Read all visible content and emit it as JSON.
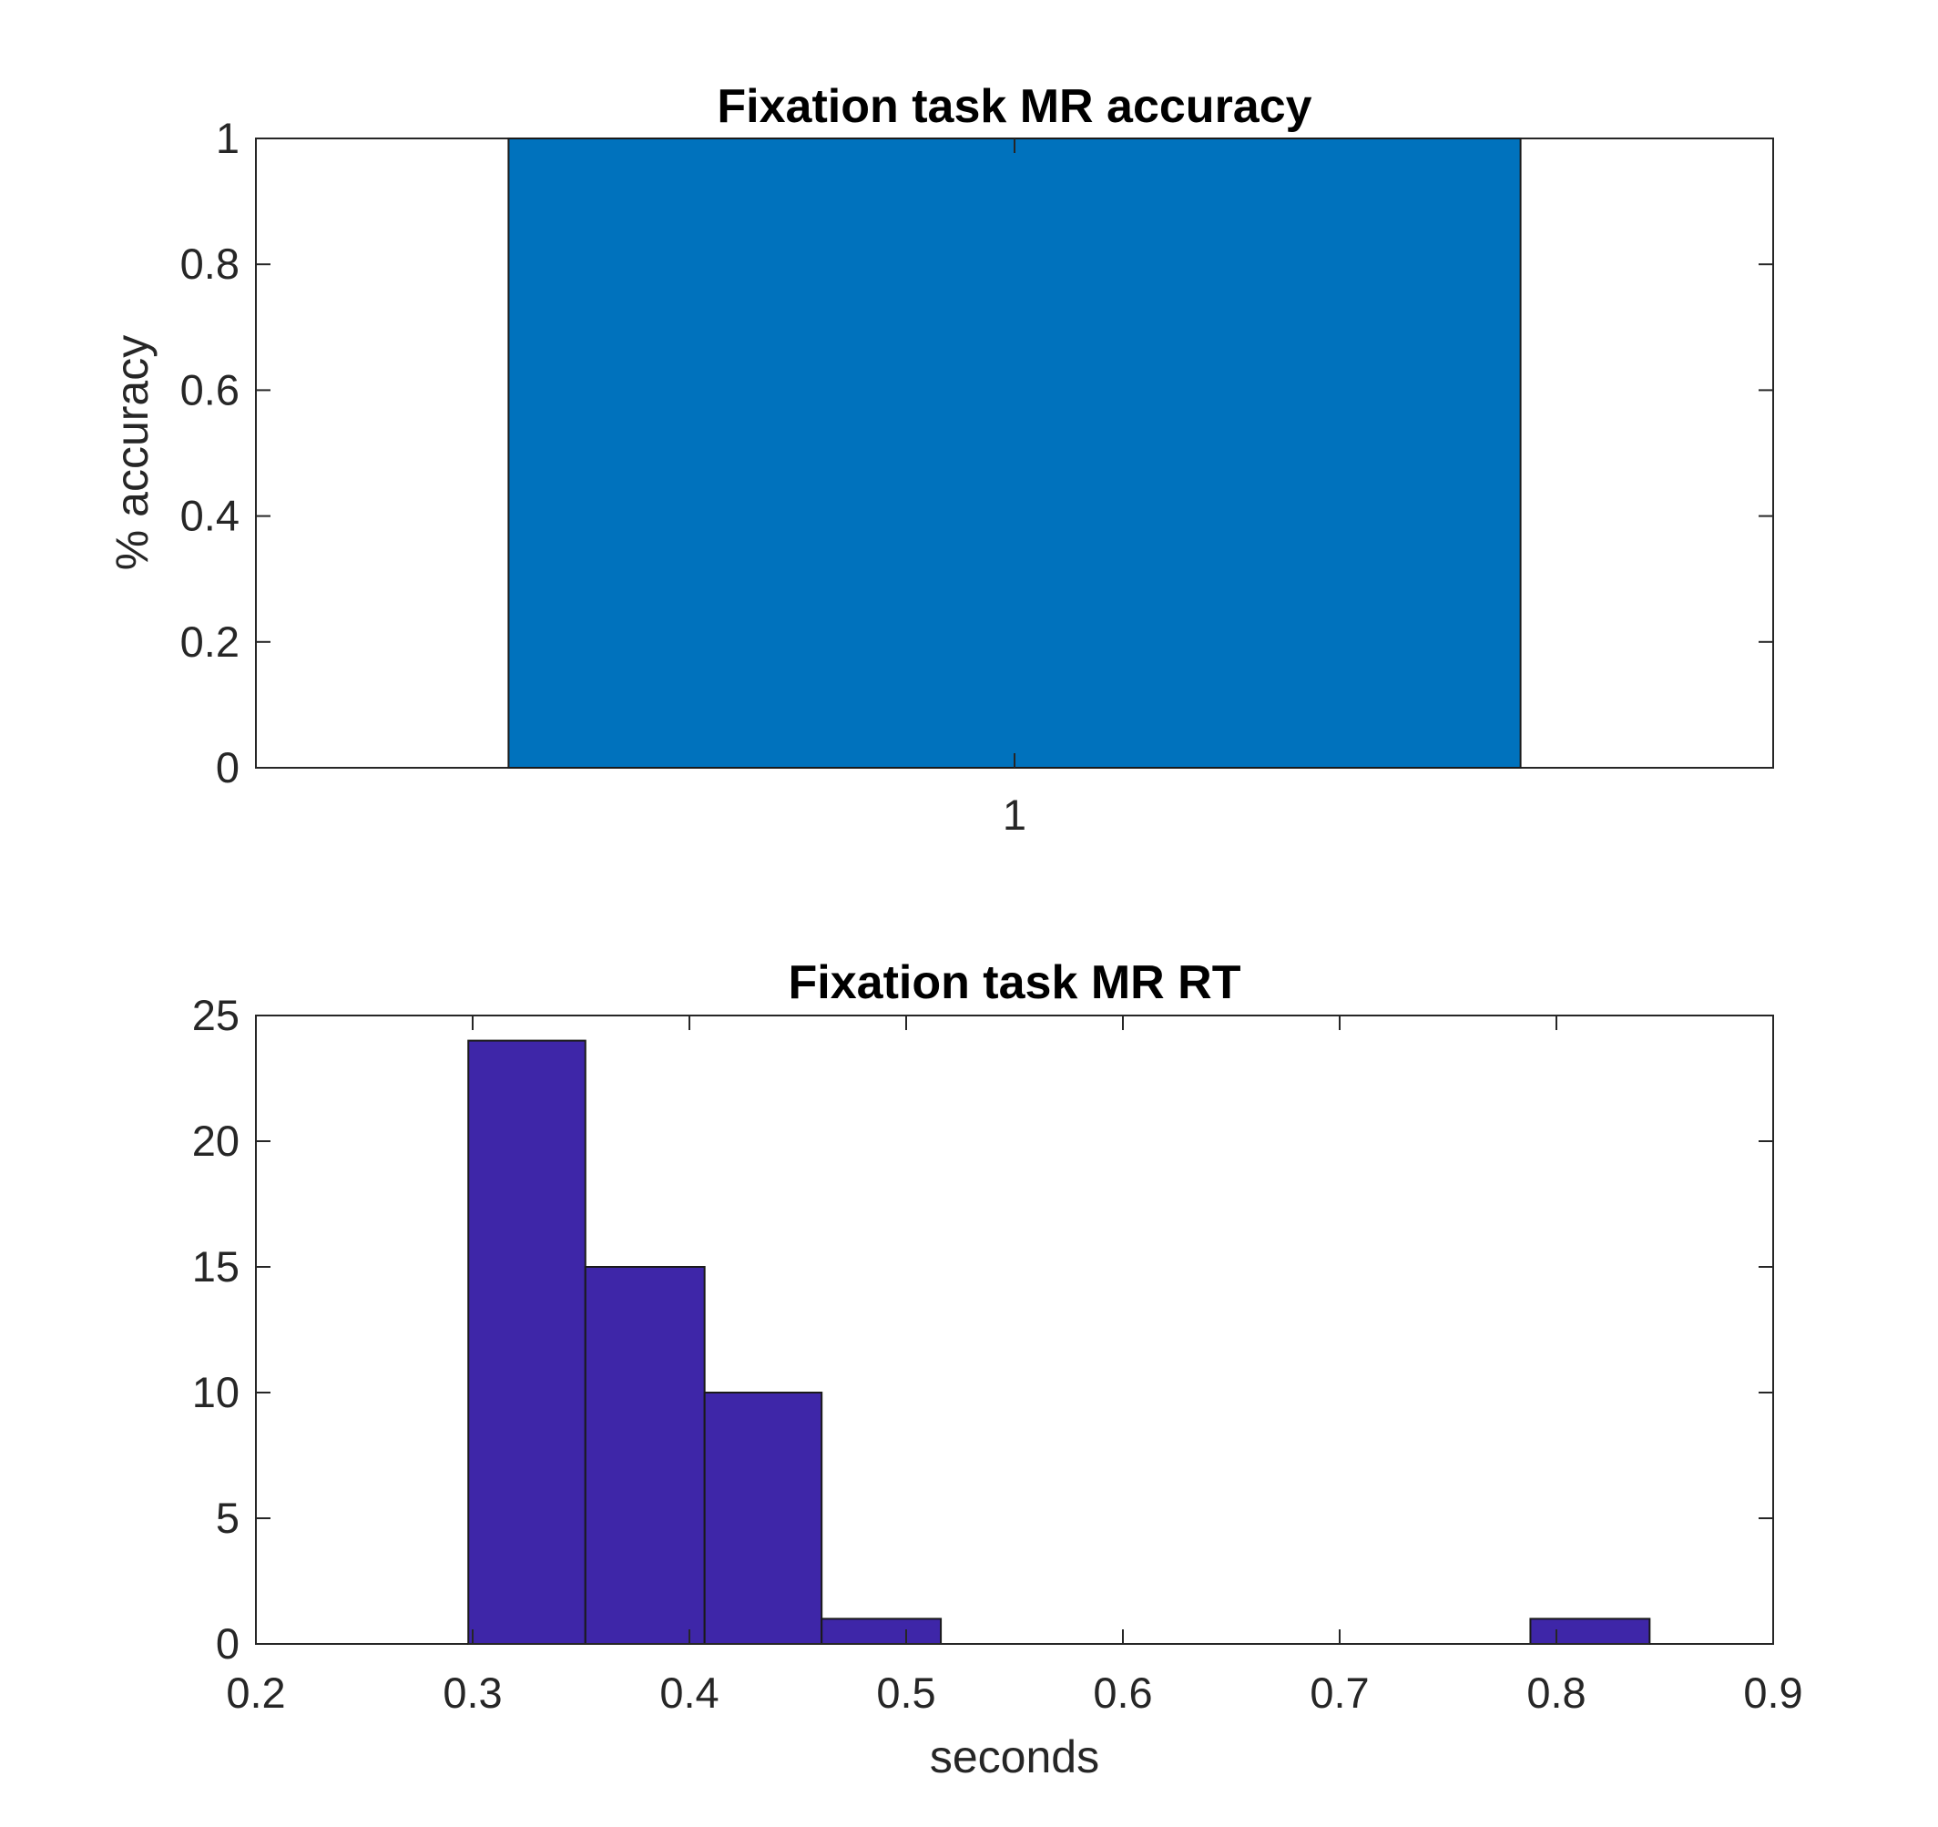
{
  "chart_data": [
    {
      "type": "bar",
      "title": "Fixation task MR accuracy",
      "xlabel": "",
      "ylabel": "% accuracy",
      "categories": [
        "1"
      ],
      "values": [
        1
      ],
      "xlim": [
        0.5,
        1.5
      ],
      "ylim": [
        0,
        1
      ],
      "yticks": [
        "0",
        "0.2",
        "0.4",
        "0.6",
        "0.8",
        "1"
      ],
      "xticks": [
        "1"
      ],
      "bar_color": "#0072bd",
      "grid": false
    },
    {
      "type": "bar",
      "title": "Fixation task MR RT",
      "xlabel": "seconds",
      "ylabel": "",
      "bins": [
        {
          "x0": 0.298,
          "x1": 0.352,
          "count": 24
        },
        {
          "x0": 0.352,
          "x1": 0.407,
          "count": 15
        },
        {
          "x0": 0.407,
          "x1": 0.461,
          "count": 10
        },
        {
          "x0": 0.461,
          "x1": 0.516,
          "count": 1
        },
        {
          "x0": 0.516,
          "x1": 0.57,
          "count": 0
        },
        {
          "x0": 0.57,
          "x1": 0.625,
          "count": 0
        },
        {
          "x0": 0.625,
          "x1": 0.679,
          "count": 0
        },
        {
          "x0": 0.679,
          "x1": 0.734,
          "count": 0
        },
        {
          "x0": 0.734,
          "x1": 0.788,
          "count": 0
        },
        {
          "x0": 0.788,
          "x1": 0.843,
          "count": 1
        }
      ],
      "xlim": [
        0.2,
        0.9
      ],
      "ylim": [
        0,
        25
      ],
      "xticks": [
        "0.2",
        "0.3",
        "0.4",
        "0.5",
        "0.6",
        "0.7",
        "0.8",
        "0.9"
      ],
      "yticks": [
        "0",
        "5",
        "10",
        "15",
        "20",
        "25"
      ],
      "bar_color": "#3e26a8",
      "grid": false
    }
  ]
}
